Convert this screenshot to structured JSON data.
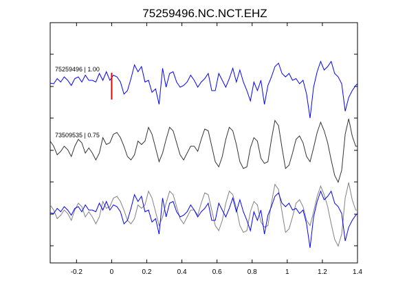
{
  "chart_data": {
    "type": "line",
    "title": "75259496.NC.NCT.EHZ",
    "xlabel": "",
    "ylabel": "",
    "xlim": [
      -0.35,
      1.4
    ],
    "x_ticks": [
      -0.2,
      0,
      0.2,
      0.4,
      0.6,
      0.8,
      1,
      1.2,
      1.4
    ],
    "x_tick_labels": [
      "-0.2",
      "0",
      "0.2",
      "0.4",
      "0.6",
      "0.8",
      "1",
      "1.2",
      "1.4"
    ],
    "grid": false,
    "pick_marker": {
      "x": 0,
      "color": "#ff0000"
    },
    "traces": [
      {
        "label": "75259496 | 1.00",
        "row": 0,
        "color": "#0000ff",
        "x": [
          -0.35,
          -0.33,
          -0.31,
          -0.29,
          -0.27,
          -0.25,
          -0.23,
          -0.21,
          -0.19,
          -0.17,
          -0.15,
          -0.13,
          -0.11,
          -0.09,
          -0.07,
          -0.05,
          -0.03,
          -0.01,
          0.01,
          0.03,
          0.05,
          0.07,
          0.09,
          0.11,
          0.13,
          0.15,
          0.17,
          0.19,
          0.21,
          0.23,
          0.25,
          0.27,
          0.29,
          0.31,
          0.33,
          0.35,
          0.37,
          0.39,
          0.41,
          0.43,
          0.45,
          0.47,
          0.49,
          0.51,
          0.53,
          0.55,
          0.57,
          0.59,
          0.61,
          0.63,
          0.65,
          0.67,
          0.69,
          0.71,
          0.73,
          0.75,
          0.77,
          0.79,
          0.81,
          0.83,
          0.85,
          0.87,
          0.89,
          0.91,
          0.93,
          0.95,
          0.97,
          0.99,
          1.01,
          1.03,
          1.05,
          1.07,
          1.09,
          1.11,
          1.13,
          1.15,
          1.17,
          1.19,
          1.21,
          1.23,
          1.25,
          1.27,
          1.29,
          1.31,
          1.33,
          1.35,
          1.37,
          1.39,
          1.4
        ],
        "y": [
          0.02,
          0.0,
          0.15,
          0.05,
          0.2,
          0.1,
          -0.05,
          0.15,
          0.2,
          0.05,
          0.25,
          0.1,
          0.1,
          0.05,
          0.3,
          0.1,
          0.35,
          0.1,
          0.25,
          0.2,
          0.05,
          -0.3,
          -0.2,
          0.15,
          0.55,
          0.35,
          0.5,
          0.05,
          0.1,
          -0.25,
          -0.15,
          -0.6,
          0.45,
          -0.1,
          0.3,
          0.35,
          0.05,
          -0.1,
          -0.05,
          0.05,
          0.25,
          0.1,
          -0.1,
          0.05,
          0.15,
          0.3,
          -0.2,
          -0.2,
          0.3,
          0.1,
          -0.1,
          0.15,
          0.45,
          0.05,
          0.4,
          0.05,
          -0.2,
          -0.5,
          0.05,
          -0.2,
          0.1,
          -0.6,
          -0.05,
          0.2,
          0.5,
          0.6,
          0.3,
          0.2,
          0.3,
          0.1,
          0.15,
          0.0,
          0.1,
          -0.3,
          -1.0,
          -0.1,
          0.35,
          0.65,
          0.4,
          0.5,
          0.65,
          0.3,
          0.2,
          0.0,
          -0.8,
          -0.4,
          -0.2,
          -0.05,
          0.0
        ]
      },
      {
        "label": "73509535 | 0.75",
        "row": 1,
        "color": "#333333",
        "x": [
          -0.35,
          -0.33,
          -0.31,
          -0.29,
          -0.27,
          -0.25,
          -0.23,
          -0.21,
          -0.19,
          -0.17,
          -0.15,
          -0.13,
          -0.11,
          -0.09,
          -0.07,
          -0.05,
          -0.03,
          -0.01,
          0.01,
          0.03,
          0.05,
          0.07,
          0.09,
          0.11,
          0.13,
          0.15,
          0.17,
          0.19,
          0.21,
          0.23,
          0.25,
          0.27,
          0.29,
          0.31,
          0.33,
          0.35,
          0.37,
          0.39,
          0.41,
          0.43,
          0.45,
          0.47,
          0.49,
          0.51,
          0.53,
          0.55,
          0.57,
          0.59,
          0.61,
          0.63,
          0.65,
          0.67,
          0.69,
          0.71,
          0.73,
          0.75,
          0.77,
          0.79,
          0.81,
          0.83,
          0.85,
          0.87,
          0.89,
          0.91,
          0.93,
          0.95,
          0.97,
          0.99,
          1.01,
          1.03,
          1.05,
          1.07,
          1.09,
          1.11,
          1.13,
          1.15,
          1.17,
          1.19,
          1.21,
          1.23,
          1.25,
          1.27,
          1.29,
          1.31,
          1.33,
          1.35,
          1.37,
          1.39,
          1.4
        ],
        "y": [
          0.25,
          0.1,
          -0.15,
          -0.05,
          0.1,
          0.0,
          -0.2,
          0.1,
          0.3,
          0.2,
          -0.1,
          0.05,
          -0.1,
          -0.3,
          -0.1,
          0.35,
          0.15,
          0.2,
          0.45,
          0.5,
          0.35,
          0.1,
          -0.2,
          -0.3,
          -0.15,
          0.25,
          0.15,
          0.25,
          0.65,
          0.45,
          0.05,
          -0.35,
          -0.1,
          0.3,
          0.65,
          0.55,
          0.2,
          -0.15,
          -0.3,
          -0.1,
          0.1,
          0.1,
          -0.05,
          0.3,
          0.6,
          0.55,
          0.1,
          -0.35,
          -0.5,
          -0.2,
          0.3,
          0.65,
          0.55,
          0.15,
          -0.35,
          -0.55,
          -0.5,
          0.05,
          0.35,
          0.25,
          -0.25,
          -0.4,
          -0.35,
          0.3,
          0.85,
          0.7,
          0.05,
          -0.55,
          -0.45,
          -0.1,
          0.3,
          0.4,
          0.2,
          -0.2,
          -0.35,
          0.05,
          0.5,
          0.8,
          0.55,
          0.2,
          -0.3,
          -0.75,
          -0.95,
          -0.6,
          0.45,
          0.9,
          0.4,
          0.1,
          0.1
        ]
      },
      {
        "label": "",
        "row": 2,
        "color": "#808080",
        "x": [
          -0.35,
          -0.33,
          -0.31,
          -0.29,
          -0.27,
          -0.25,
          -0.23,
          -0.21,
          -0.19,
          -0.17,
          -0.15,
          -0.13,
          -0.11,
          -0.09,
          -0.07,
          -0.05,
          -0.03,
          -0.01,
          0.01,
          0.03,
          0.05,
          0.07,
          0.09,
          0.11,
          0.13,
          0.15,
          0.17,
          0.19,
          0.21,
          0.23,
          0.25,
          0.27,
          0.29,
          0.31,
          0.33,
          0.35,
          0.37,
          0.39,
          0.41,
          0.43,
          0.45,
          0.47,
          0.49,
          0.51,
          0.53,
          0.55,
          0.57,
          0.59,
          0.61,
          0.63,
          0.65,
          0.67,
          0.69,
          0.71,
          0.73,
          0.75,
          0.77,
          0.79,
          0.81,
          0.83,
          0.85,
          0.87,
          0.89,
          0.91,
          0.93,
          0.95,
          0.97,
          0.99,
          1.01,
          1.03,
          1.05,
          1.07,
          1.09,
          1.11,
          1.13,
          1.15,
          1.17,
          1.19,
          1.21,
          1.23,
          1.25,
          1.27,
          1.29,
          1.31,
          1.33,
          1.35,
          1.37,
          1.39,
          1.4
        ],
        "y": [
          0.25,
          0.1,
          -0.15,
          -0.05,
          0.1,
          0.0,
          -0.2,
          0.1,
          0.3,
          0.2,
          -0.1,
          0.05,
          -0.1,
          -0.3,
          -0.1,
          0.35,
          0.15,
          0.2,
          0.45,
          0.5,
          0.35,
          0.1,
          -0.2,
          -0.3,
          -0.15,
          0.25,
          0.15,
          0.25,
          0.65,
          0.45,
          0.05,
          -0.35,
          -0.1,
          0.3,
          0.65,
          0.55,
          0.2,
          -0.15,
          -0.3,
          -0.1,
          0.1,
          0.1,
          -0.05,
          0.3,
          0.6,
          0.55,
          0.1,
          -0.35,
          -0.5,
          -0.2,
          0.3,
          0.65,
          0.55,
          0.15,
          -0.35,
          -0.55,
          -0.5,
          0.05,
          0.35,
          0.25,
          -0.25,
          -0.4,
          -0.35,
          0.3,
          0.85,
          0.7,
          0.05,
          -0.55,
          -0.45,
          -0.1,
          0.3,
          0.4,
          0.2,
          -0.2,
          -0.35,
          0.05,
          0.5,
          0.8,
          0.55,
          0.2,
          -0.3,
          -0.75,
          -0.95,
          -0.6,
          0.45,
          0.9,
          0.4,
          0.1,
          0.1
        ]
      },
      {
        "label": "",
        "row": 2,
        "color": "#0000ff",
        "x": [
          -0.35,
          -0.33,
          -0.31,
          -0.29,
          -0.27,
          -0.25,
          -0.23,
          -0.21,
          -0.19,
          -0.17,
          -0.15,
          -0.13,
          -0.11,
          -0.09,
          -0.07,
          -0.05,
          -0.03,
          -0.01,
          0.01,
          0.03,
          0.05,
          0.07,
          0.09,
          0.11,
          0.13,
          0.15,
          0.17,
          0.19,
          0.21,
          0.23,
          0.25,
          0.27,
          0.29,
          0.31,
          0.33,
          0.35,
          0.37,
          0.39,
          0.41,
          0.43,
          0.45,
          0.47,
          0.49,
          0.51,
          0.53,
          0.55,
          0.57,
          0.59,
          0.61,
          0.63,
          0.65,
          0.67,
          0.69,
          0.71,
          0.73,
          0.75,
          0.77,
          0.79,
          0.81,
          0.83,
          0.85,
          0.87,
          0.89,
          0.91,
          0.93,
          0.95,
          0.97,
          0.99,
          1.01,
          1.03,
          1.05,
          1.07,
          1.09,
          1.11,
          1.13,
          1.15,
          1.17,
          1.19,
          1.21,
          1.23,
          1.25,
          1.27,
          1.29,
          1.31,
          1.33,
          1.35,
          1.37,
          1.39,
          1.4
        ],
        "y": [
          0.02,
          0.0,
          0.15,
          0.05,
          0.2,
          0.1,
          -0.05,
          0.15,
          0.2,
          0.05,
          0.25,
          0.1,
          0.1,
          0.05,
          0.3,
          0.1,
          0.35,
          0.1,
          0.25,
          0.2,
          0.05,
          -0.3,
          -0.2,
          0.15,
          0.55,
          0.35,
          0.5,
          0.05,
          0.1,
          -0.25,
          -0.15,
          -0.6,
          0.45,
          -0.1,
          0.3,
          0.35,
          0.05,
          -0.1,
          -0.05,
          0.05,
          0.25,
          0.1,
          -0.1,
          0.05,
          0.15,
          0.3,
          -0.2,
          -0.2,
          0.3,
          0.1,
          -0.1,
          0.15,
          0.45,
          0.05,
          0.4,
          0.05,
          -0.2,
          -0.5,
          0.05,
          -0.2,
          0.1,
          -0.6,
          -0.05,
          0.2,
          0.5,
          0.6,
          0.3,
          0.2,
          0.3,
          0.1,
          0.15,
          0.0,
          0.1,
          -0.3,
          -1.0,
          -0.1,
          0.35,
          0.65,
          0.4,
          0.5,
          0.65,
          0.3,
          0.2,
          0.0,
          -0.8,
          -0.4,
          -0.2,
          -0.05,
          0.0
        ]
      }
    ]
  }
}
